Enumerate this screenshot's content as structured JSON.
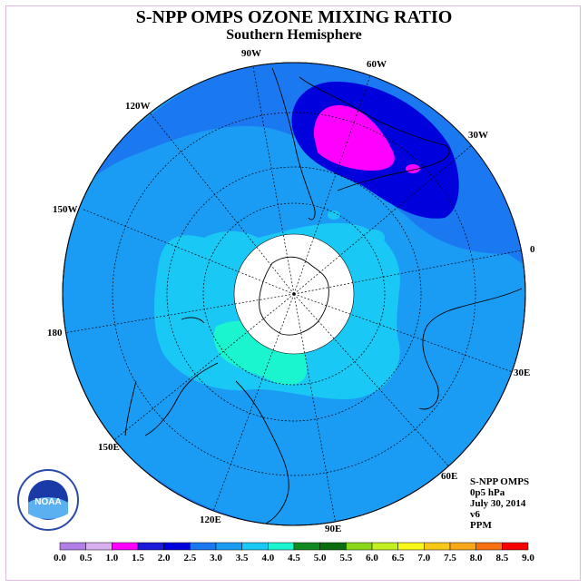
{
  "title": "S-NPP OMPS OZONE MIXING RATIO",
  "subtitle": "Southern Hemisphere",
  "longitude_labels": {
    "lon_90w": "90W",
    "lon_60w": "60W",
    "lon_30w": "30W",
    "lon_0": "0",
    "lon_30e": "30E",
    "lon_60e": "60E",
    "lon_90e": "90E",
    "lon_120e": "120E",
    "lon_150e": "150E",
    "lon_180": "180",
    "lon_150w": "150W",
    "lon_120w": "120W"
  },
  "info": {
    "instrument": "S-NPP OMPS",
    "level": "0p5 hPa",
    "date": "July 30, 2014",
    "version": "v6",
    "units": "PPM"
  },
  "logo": {
    "text": "NOAA",
    "icon": "noaa-logo"
  },
  "colorbar": {
    "ticks": [
      "0.0",
      "0.5",
      "1.0",
      "1.5",
      "2.0",
      "2.5",
      "3.0",
      "3.5",
      "4.0",
      "4.5",
      "5.0",
      "5.5",
      "6.0",
      "6.5",
      "7.0",
      "7.5",
      "8.0",
      "8.5",
      "9.0"
    ],
    "colors": [
      "#b07fe8",
      "#d8b0f0",
      "#ff00ff",
      "#1a1ad8",
      "#0000dd",
      "#1a78f0",
      "#1a9cf5",
      "#1ac8f5",
      "#1af5d0",
      "#108a20",
      "#0a6e10",
      "#88d818",
      "#c0f020",
      "#f8f818",
      "#f8c818",
      "#f8a818",
      "#f87010",
      "#f80000",
      "#8c5a3a"
    ]
  },
  "map_colors": {
    "background": "#1a9cf5",
    "band_3_0": "#1a9cf5",
    "band_2_5": "#1a78f0",
    "band_3_5": "#1ac8f5",
    "band_4_0": "#1af5d0",
    "band_2_0": "#0000dd",
    "band_1_0": "#ff00ff"
  }
}
